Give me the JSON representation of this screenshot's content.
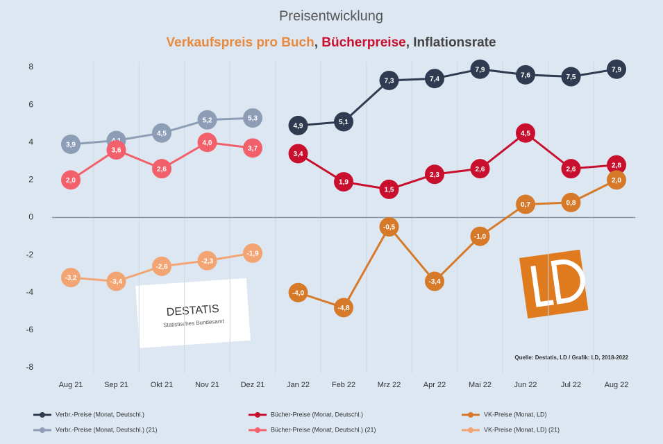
{
  "chart_data": {
    "type": "line",
    "title": "Preisentwicklung",
    "subtitle": [
      {
        "text": "Verkaufspreis pro Buch",
        "color": "#e8893e"
      },
      {
        "text": ", ",
        "color": "#444444"
      },
      {
        "text": "Bücherpreise",
        "color": "#c8102e"
      },
      {
        "text": ", Inflationsrate",
        "color": "#444444"
      }
    ],
    "source": "Quelle: Destatis, LD / Grafik: LD, 2018-2022",
    "logo_texts": [
      "DESTATIS",
      "Statistisches Bundesamt"
    ],
    "categories": [
      "Aug 21",
      "Sep 21",
      "Okt 21",
      "Nov 21",
      "Dez 21",
      "Jan 22",
      "Feb 22",
      "Mrz 22",
      "Apr 22",
      "Mai 22",
      "Jun 22",
      "Jul 22",
      "Aug 22"
    ],
    "ylim": [
      -8,
      8
    ],
    "yticks": [
      -8,
      -6,
      -4,
      -2,
      0,
      2,
      4,
      6,
      8
    ],
    "grid": true,
    "series": [
      {
        "name": "Verbr.-Preise (Monat, Deutschl.)",
        "color": "#2f3b50",
        "values": [
          null,
          null,
          null,
          null,
          null,
          4.9,
          5.1,
          7.3,
          7.4,
          7.9,
          7.6,
          7.5,
          7.9
        ],
        "value_labels": [
          null,
          null,
          null,
          null,
          null,
          "4,9",
          "5,1",
          "7,3",
          "7,4",
          "7,9",
          "7,6",
          "7,5",
          "7,9"
        ]
      },
      {
        "name": "Bücher-Preise (Monat, Deutschl.)",
        "color": "#c8102e",
        "values": [
          null,
          null,
          null,
          null,
          null,
          3.4,
          1.9,
          1.5,
          2.3,
          2.6,
          4.5,
          2.6,
          2.8
        ],
        "value_labels": [
          null,
          null,
          null,
          null,
          null,
          "3,4",
          "1,9",
          "1,5",
          "2,3",
          "2,6",
          "4,5",
          "2,6",
          "2,8"
        ]
      },
      {
        "name": "VK-Preise (Monat, LD)",
        "color": "#d67a2a",
        "values": [
          null,
          null,
          null,
          null,
          null,
          -4.0,
          -4.8,
          -0.5,
          -3.4,
          -1.0,
          0.7,
          0.8,
          2.0
        ],
        "value_labels": [
          null,
          null,
          null,
          null,
          null,
          "-4,0",
          "-4,8",
          "-0,5",
          "-3,4",
          "-1,0",
          "0,7",
          "0,8",
          "2,0"
        ]
      },
      {
        "name": "Verbr.-Preise (Monat, Deutschl.) (21)",
        "color": "#8d9db6",
        "values": [
          3.9,
          4.1,
          4.5,
          5.2,
          5.3,
          null,
          null,
          null,
          null,
          null,
          null,
          null,
          null
        ],
        "value_labels": [
          "3,9",
          "4,1",
          "4,5",
          "5,2",
          "5,3",
          null,
          null,
          null,
          null,
          null,
          null,
          null,
          null
        ]
      },
      {
        "name": "Bücher-Preise (Monat, Deutschl.) (21)",
        "color": "#f2616b",
        "values": [
          2.0,
          3.6,
          2.6,
          4.0,
          3.7,
          null,
          null,
          null,
          null,
          null,
          null,
          null,
          null
        ],
        "value_labels": [
          "2,0",
          "3,6",
          "2,6",
          "4,0",
          "3,7",
          null,
          null,
          null,
          null,
          null,
          null,
          null,
          null
        ]
      },
      {
        "name": "VK-Preise (Monat, LD) (21)",
        "color": "#f3a473",
        "values": [
          -3.2,
          -3.4,
          -2.6,
          -2.3,
          -1.9,
          null,
          null,
          null,
          null,
          null,
          null,
          null,
          null
        ],
        "value_labels": [
          "-3,2",
          "-3,4",
          "-2,6",
          "-2,3",
          "-1,9",
          null,
          null,
          null,
          null,
          null,
          null,
          null,
          null
        ]
      }
    ]
  }
}
